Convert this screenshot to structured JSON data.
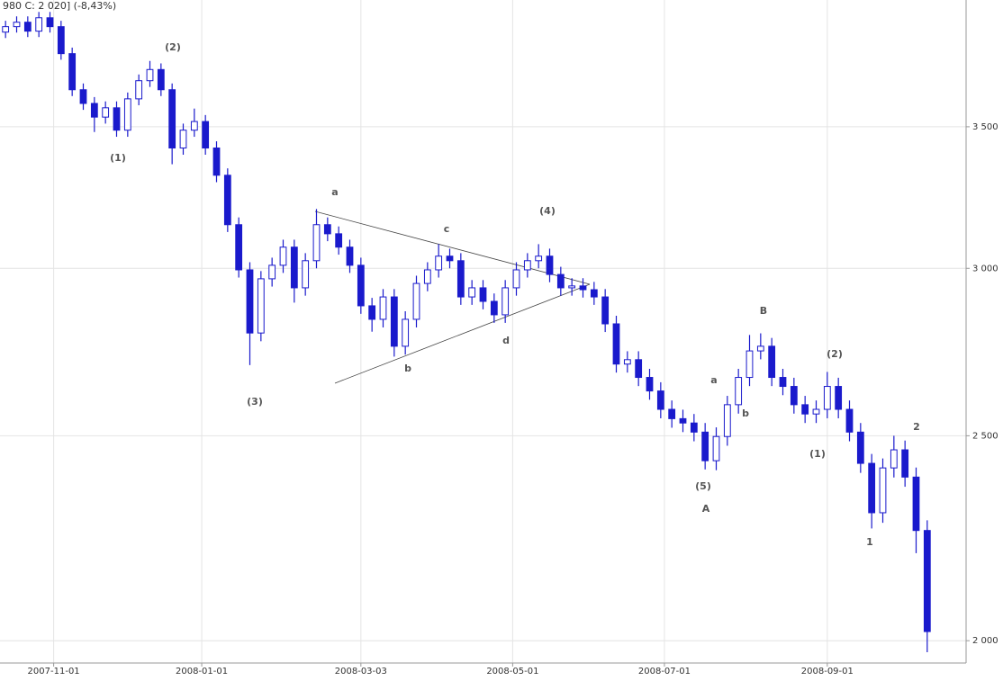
{
  "chart_data": {
    "type": "candlestick",
    "title": "980  C: 2 020] (-8,43%)",
    "color": "#1a1acc",
    "log_scale": true,
    "grid": true,
    "y_axis_side": "right",
    "xlim": [
      -1.5,
      259.5
    ],
    "xticks": [
      {
        "value": 13,
        "label": "2007-11-01"
      },
      {
        "value": 53,
        "label": "2008-01-01"
      },
      {
        "value": 96,
        "label": "2008-03-03"
      },
      {
        "value": 137,
        "label": "2008-05-01"
      },
      {
        "value": 178,
        "label": "2008-07-01"
      },
      {
        "value": 222,
        "label": "2008-09-01"
      }
    ],
    "ylim": [
      1952,
      4018
    ],
    "yticks": [
      {
        "value": 2000,
        "label": "2 000"
      },
      {
        "value": 2500,
        "label": "2 500"
      },
      {
        "value": 3000,
        "label": "3 000"
      },
      {
        "value": 3500,
        "label": "3 500"
      }
    ],
    "x": [
      0,
      3,
      6,
      9,
      12,
      15,
      18,
      21,
      24,
      27,
      30,
      33,
      36,
      39,
      42,
      45,
      48,
      51,
      54,
      57,
      60,
      63,
      66,
      69,
      72,
      75,
      78,
      81,
      84,
      87,
      90,
      93,
      96,
      99,
      102,
      105,
      108,
      111,
      114,
      117,
      120,
      123,
      126,
      129,
      132,
      135,
      138,
      141,
      144,
      147,
      150,
      153,
      156,
      159,
      162,
      165,
      168,
      171,
      174,
      177,
      180,
      183,
      186,
      189,
      192,
      195,
      198,
      201,
      204,
      207,
      210,
      213,
      216,
      219,
      222,
      225,
      228,
      231,
      234,
      237,
      240,
      243,
      246,
      249
    ],
    "open": [
      3880,
      3903,
      3922,
      3884,
      3941,
      3903,
      3790,
      3644,
      3590,
      3537,
      3573,
      3487,
      3608,
      3680,
      3725,
      3644,
      3420,
      3487,
      3520,
      3420,
      3320,
      3146,
      2995,
      2796,
      2966,
      3010,
      3070,
      2937,
      3025,
      3146,
      3115,
      3070,
      3010,
      2880,
      2838,
      2908,
      2756,
      2838,
      2951,
      2995,
      3040,
      3025,
      2908,
      2937,
      2894,
      2852,
      2937,
      2995,
      3025,
      3040,
      2980,
      2937,
      2943,
      2931,
      2908,
      2824,
      2703,
      2716,
      2664,
      2625,
      2573,
      2547,
      2535,
      2510,
      2433,
      2498,
      2586,
      2664,
      2742,
      2756,
      2664,
      2638,
      2586,
      2560,
      2573,
      2638,
      2573,
      2510,
      2426,
      2299,
      2414,
      2462,
      2390,
      2255
    ],
    "high": [
      3928,
      3947,
      3947,
      3966,
      3966,
      3928,
      3815,
      3669,
      3615,
      3598,
      3598,
      3633,
      3705,
      3760,
      3750,
      3669,
      3512,
      3570,
      3545,
      3445,
      3345,
      3171,
      3020,
      2991,
      3035,
      3095,
      3095,
      3050,
      3200,
      3171,
      3140,
      3095,
      3035,
      2905,
      2933,
      2933,
      2863,
      2976,
      3020,
      3080,
      3065,
      3050,
      2962,
      2962,
      2919,
      2962,
      3020,
      3050,
      3080,
      3065,
      3005,
      2968,
      2968,
      2956,
      2933,
      2849,
      2741,
      2741,
      2689,
      2650,
      2598,
      2572,
      2560,
      2535,
      2523,
      2611,
      2689,
      2790,
      2795,
      2781,
      2689,
      2663,
      2611,
      2598,
      2680,
      2663,
      2598,
      2535,
      2451,
      2439,
      2500,
      2487,
      2415,
      2280
    ],
    "low": [
      3855,
      3878,
      3859,
      3859,
      3878,
      3765,
      3619,
      3565,
      3480,
      3512,
      3462,
      3462,
      3583,
      3655,
      3619,
      3360,
      3395,
      3462,
      3395,
      3295,
      3121,
      2970,
      2700,
      2771,
      2941,
      2985,
      2890,
      2912,
      3000,
      3090,
      3045,
      2985,
      2855,
      2800,
      2813,
      2725,
      2731,
      2813,
      2926,
      2970,
      3000,
      2883,
      2883,
      2869,
      2827,
      2827,
      2912,
      2970,
      3000,
      2955,
      2912,
      2912,
      2906,
      2883,
      2799,
      2678,
      2678,
      2639,
      2600,
      2548,
      2522,
      2510,
      2485,
      2410,
      2408,
      2473,
      2561,
      2639,
      2717,
      2639,
      2613,
      2561,
      2535,
      2535,
      2548,
      2548,
      2485,
      2401,
      2260,
      2274,
      2389,
      2365,
      2200,
      1975
    ],
    "close": [
      3903,
      3922,
      3884,
      3941,
      3903,
      3790,
      3644,
      3590,
      3537,
      3573,
      3487,
      3608,
      3680,
      3725,
      3644,
      3420,
      3487,
      3520,
      3420,
      3320,
      3146,
      2995,
      2796,
      2966,
      3010,
      3070,
      2937,
      3025,
      3146,
      3115,
      3070,
      3010,
      2880,
      2838,
      2908,
      2756,
      2838,
      2951,
      2995,
      3040,
      3025,
      2908,
      2937,
      2894,
      2852,
      2937,
      2995,
      3025,
      3040,
      2980,
      2937,
      2943,
      2931,
      2908,
      2824,
      2703,
      2716,
      2664,
      2625,
      2573,
      2547,
      2535,
      2510,
      2433,
      2498,
      2586,
      2664,
      2742,
      2756,
      2664,
      2638,
      2586,
      2560,
      2573,
      2638,
      2573,
      2510,
      2426,
      2299,
      2414,
      2462,
      2390,
      2255,
      2020
    ],
    "annotations": [
      "(2)",
      "(1)",
      "(3)",
      "a",
      "c",
      "(4)",
      "b",
      "d",
      "B",
      "a",
      "b",
      "(2)",
      "(1)",
      "(5)",
      "A",
      "2",
      "1"
    ]
  }
}
